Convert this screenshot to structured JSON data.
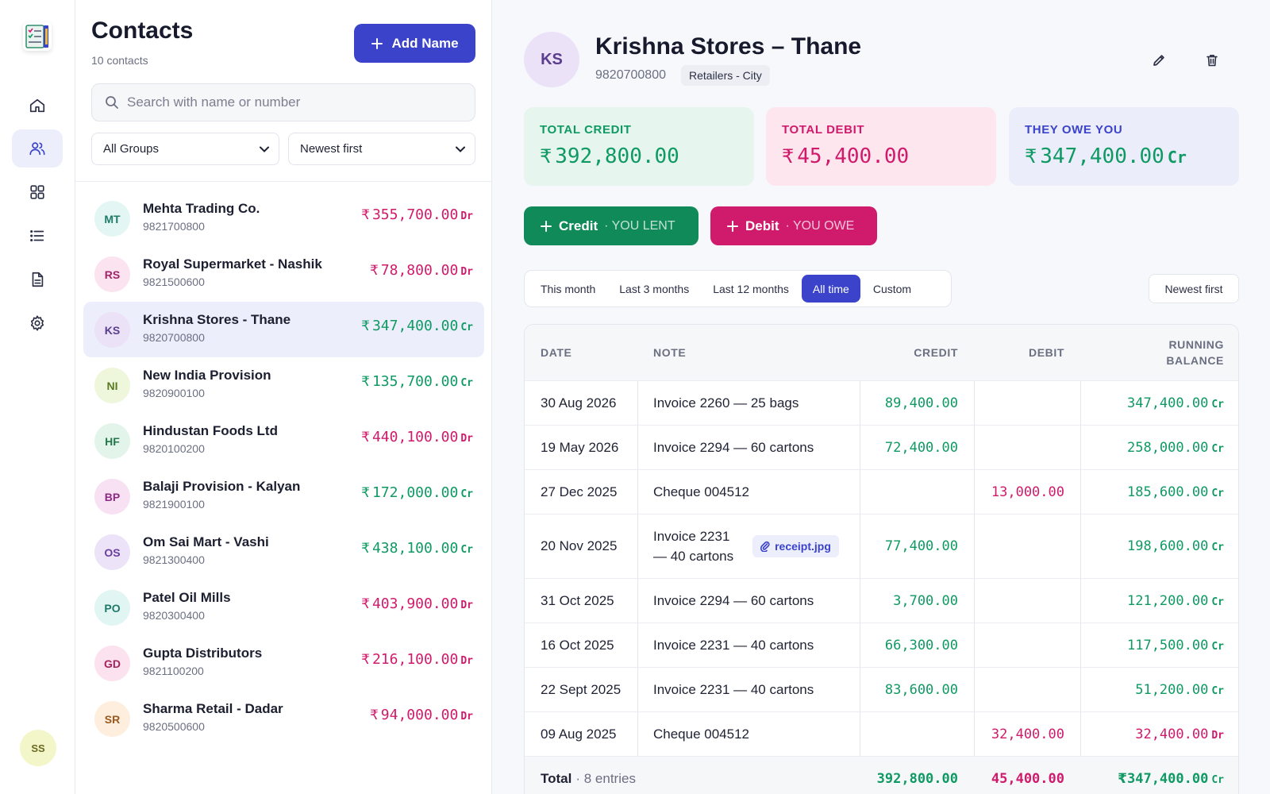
{
  "sidebar": {
    "nav": [
      "home-icon",
      "users-icon",
      "grid-icon",
      "list-icon",
      "file-icon",
      "gear-icon"
    ],
    "active": "users-icon",
    "avatar": "SS"
  },
  "contacts": {
    "title": "Contacts",
    "count": "10 contacts",
    "add_label": "Add Name",
    "search_placeholder": "Search with name or number",
    "group_filter": "All Groups",
    "sort": "Newest first",
    "currency": "₹",
    "items": [
      {
        "initials": "MT",
        "name": "Mehta Trading Co.",
        "phone": "9821700800",
        "amount": "355,700.00",
        "type": "Dr"
      },
      {
        "initials": "RS",
        "name": "Royal Supermarket - Nashik",
        "phone": "9821500600",
        "amount": "78,800.00",
        "type": "Dr"
      },
      {
        "initials": "KS",
        "name": "Krishna Stores - Thane",
        "phone": "9820700800",
        "amount": "347,400.00",
        "type": "Cr"
      },
      {
        "initials": "NI",
        "name": "New India Provision",
        "phone": "9820900100",
        "amount": "135,700.00",
        "type": "Cr"
      },
      {
        "initials": "HF",
        "name": "Hindustan Foods Ltd",
        "phone": "9820100200",
        "amount": "440,100.00",
        "type": "Dr"
      },
      {
        "initials": "BP",
        "name": "Balaji Provision - Kalyan",
        "phone": "9821900100",
        "amount": "172,000.00",
        "type": "Cr"
      },
      {
        "initials": "OS",
        "name": "Om Sai Mart - Vashi",
        "phone": "9821300400",
        "amount": "438,100.00",
        "type": "Cr"
      },
      {
        "initials": "PO",
        "name": "Patel Oil Mills",
        "phone": "9820300400",
        "amount": "403,900.00",
        "type": "Dr"
      },
      {
        "initials": "GD",
        "name": "Gupta Distributors",
        "phone": "9821100200",
        "amount": "216,100.00",
        "type": "Dr"
      },
      {
        "initials": "SR",
        "name": "Sharma Retail - Dadar",
        "phone": "9820500600",
        "amount": "94,000.00",
        "type": "Dr"
      }
    ]
  },
  "detail": {
    "initials": "KS",
    "name": "Krishna Stores – Thane",
    "phone": "9820700800",
    "group": "Retailers - City",
    "cards": {
      "credit_label": "TOTAL CREDIT",
      "credit_value": "392,800.00",
      "debit_label": "TOTAL DEBIT",
      "debit_value": "45,400.00",
      "owe_label": "THEY OWE YOU",
      "owe_value": "347,400.00",
      "owe_type": "Cr"
    },
    "actions": {
      "credit": "Credit",
      "credit_sub": "· YOU LENT",
      "debit": "Debit",
      "debit_sub": "· YOU OWE"
    },
    "ranges": [
      "This month",
      "Last 3 months",
      "Last 12 months",
      "All time",
      "Custom"
    ],
    "active_range": "All time",
    "sort": "Newest first",
    "table": {
      "headers": {
        "date": "DATE",
        "note": "NOTE",
        "credit": "CREDIT",
        "debit": "DEBIT",
        "balance_1": "RUNNING",
        "balance_2": "BALANCE"
      },
      "rows": [
        {
          "date": "30 Aug 2026",
          "note": "Invoice 2260 — 25 bags",
          "credit": "89,400.00",
          "debit": "",
          "balance": "347,400.00",
          "type": "Cr"
        },
        {
          "date": "19 May 2026",
          "note": "Invoice 2294 — 60 cartons",
          "credit": "72,400.00",
          "debit": "",
          "balance": "258,000.00",
          "type": "Cr"
        },
        {
          "date": "27 Dec 2025",
          "note": "Cheque 004512",
          "credit": "",
          "debit": "13,000.00",
          "balance": "185,600.00",
          "type": "Cr"
        },
        {
          "date": "20 Nov 2025",
          "note_1": "Invoice 2231",
          "note_2": "— 40 cartons",
          "attachment": "receipt.jpg",
          "credit": "77,400.00",
          "debit": "",
          "balance": "198,600.00",
          "type": "Cr"
        },
        {
          "date": "31 Oct 2025",
          "note": "Invoice 2294 — 60 cartons",
          "credit": "3,700.00",
          "debit": "",
          "balance": "121,200.00",
          "type": "Cr"
        },
        {
          "date": "16 Oct 2025",
          "note": "Invoice 2231 — 40 cartons",
          "credit": "66,300.00",
          "debit": "",
          "balance": "117,500.00",
          "type": "Cr"
        },
        {
          "date": "22 Sept 2025",
          "note": "Invoice 2231 — 40 cartons",
          "credit": "83,600.00",
          "debit": "",
          "balance": "51,200.00",
          "type": "Cr"
        },
        {
          "date": "09 Aug 2025",
          "note": "Cheque 004512",
          "credit": "",
          "debit": "32,400.00",
          "balance": "32,400.00",
          "type": "Dr"
        }
      ],
      "footer": {
        "label": "Total",
        "entries": "· 8 entries",
        "credit": "392,800.00",
        "debit": "45,400.00",
        "balance": "347,400.00",
        "type": "Cr"
      }
    }
  },
  "colors": {
    "accent": "#3a43c9",
    "credit": "#0f9a63",
    "debit": "#d01a6b"
  }
}
